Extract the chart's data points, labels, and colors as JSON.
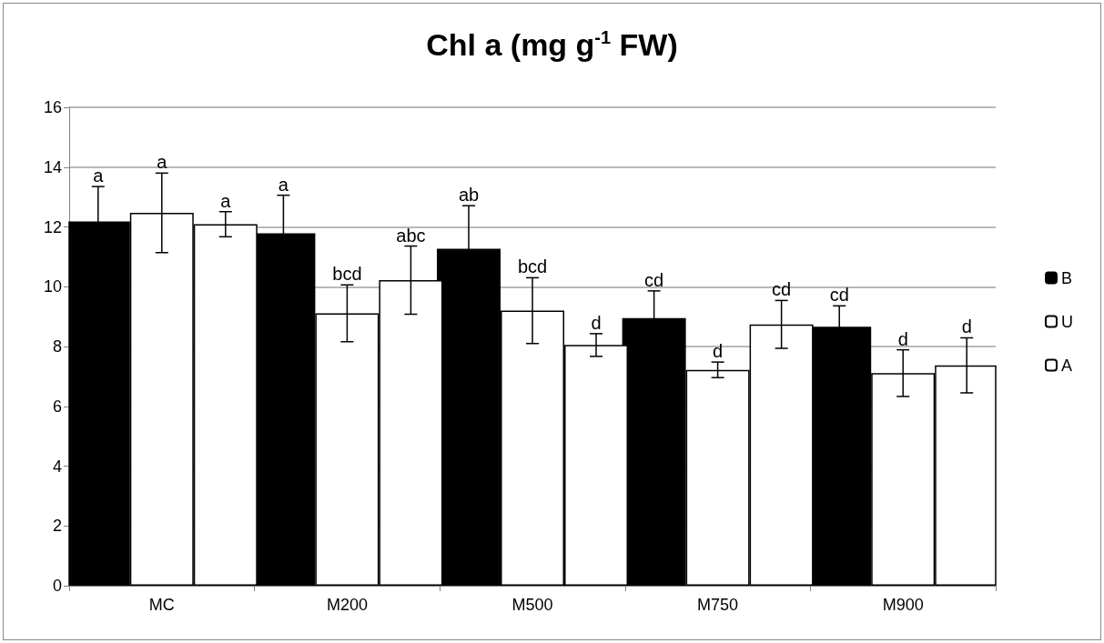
{
  "chart_data": {
    "type": "bar",
    "title": "Chl a (mg g$^{-1}$ FW)",
    "categories": [
      "MC",
      "M200",
      "M500",
      "M750",
      "M900"
    ],
    "series": [
      {
        "name": "B",
        "color": "#000000",
        "values": [
          12.18,
          11.79,
          11.27,
          8.95,
          8.66
        ],
        "errors": [
          1.17,
          1.27,
          1.44,
          0.91,
          0.7
        ],
        "value_labels": [
          "a",
          "a",
          "ab",
          "cd",
          "cd"
        ]
      },
      {
        "name": "U",
        "color": "#ffffff",
        "values": [
          12.47,
          9.11,
          9.2,
          7.22,
          7.11
        ],
        "errors": [
          1.33,
          0.95,
          1.1,
          0.26,
          0.78
        ],
        "value_labels": [
          "a",
          "bcd",
          "bcd",
          "d",
          "d"
        ]
      },
      {
        "name": "A",
        "color": "#ffffff",
        "values": [
          12.09,
          10.22,
          8.05,
          8.74,
          7.37
        ],
        "errors": [
          0.42,
          1.14,
          0.38,
          0.8,
          0.92
        ],
        "value_labels": [
          "a",
          "abc",
          "d",
          "cd",
          "d"
        ]
      }
    ],
    "ylim": [
      0,
      16
    ],
    "yticks": [
      0,
      2,
      4,
      6,
      8,
      10,
      12,
      14,
      16
    ],
    "grid": "y",
    "legend": "right"
  }
}
